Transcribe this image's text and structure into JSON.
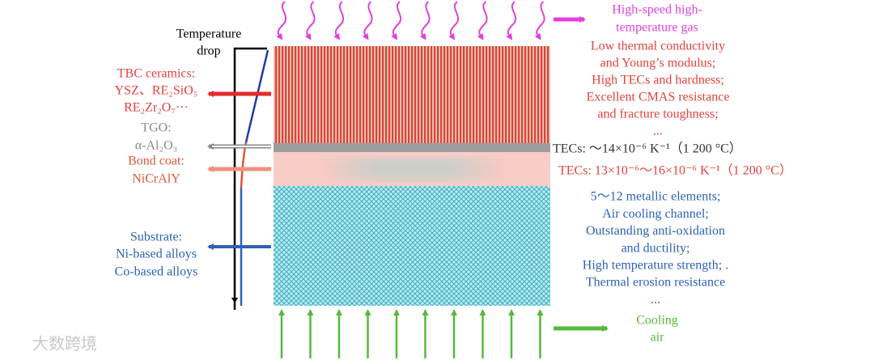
{
  "temperature_label": [
    "Temperature",
    "drop"
  ],
  "left_labels": {
    "tbc": [
      "TBC ceramics:",
      "YSZ、RE₂SiO₅",
      "RE₂Zr₂O₇···"
    ],
    "tgo": [
      "TGO:",
      "α-Al₂O₃"
    ],
    "bond_coat": [
      "Bond coat:",
      "NiCrAlY"
    ],
    "substrate": [
      "Substrate:",
      "Ni-based alloys",
      "Co-based alloys"
    ]
  },
  "gas_label": [
    "High-speed high-",
    "temperature gas"
  ],
  "tbc_properties": [
    "Low thermal conductivity",
    "and Young’s modulus;",
    "High TECs and hardness;",
    "Excellent CMAS resistance",
    "and fracture toughness;",
    "..."
  ],
  "tgo_tec": "TECs: ～14×10⁻⁶ K⁻¹（1 200 °C）",
  "bond_tec": "TECs: 13×10⁻⁶～16×10⁻⁶ K⁻¹（1 200 °C）",
  "substrate_properties": [
    "5～12 metallic elements;",
    "Air cooling channel;",
    "Outstanding anti-oxidation",
    "and ductility;",
    "High temperature strength; .",
    "Thermal erosion resistance",
    "..."
  ],
  "cooling_label": [
    "Cooling",
    "air"
  ],
  "watermark": "大数跨境"
}
